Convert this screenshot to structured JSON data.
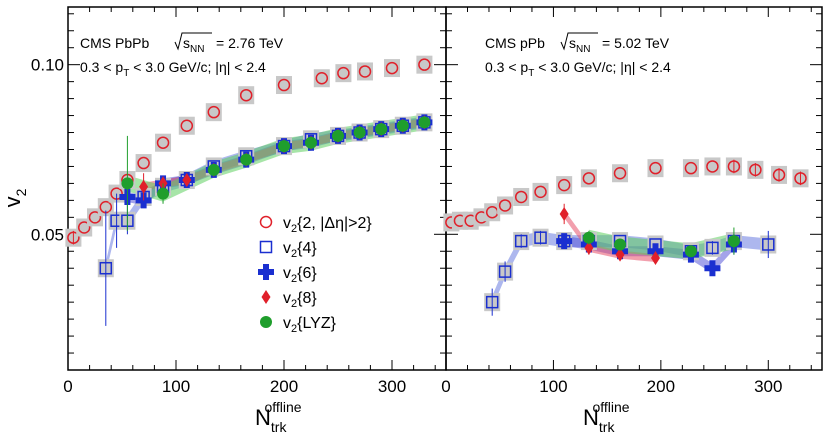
{
  "chart_data": [
    {
      "type": "scatter",
      "panel": "left",
      "title_prefix": "CMS PbPb",
      "energy_main": "s",
      "energy_sub": "NN",
      "energy_value": "= 2.76 TeV",
      "cut_line": "0.3 < p_T < 3.0 GeV/c; |η| < 2.4",
      "cut_parts": {
        "a": "0.3 < p",
        "sub": "T",
        "b": " < 3.0 GeV/c; |η| < 2.4"
      },
      "ylabel": "v2",
      "ylabel_parts": {
        "main": "v",
        "sub": "2"
      },
      "xlabel_parts": {
        "main": "N",
        "sub": "trk",
        "sup": "offline"
      },
      "xlim": [
        0,
        350
      ],
      "ylim": [
        0.01,
        0.117
      ],
      "x_ticks": [
        "0",
        "100",
        "200",
        "300"
      ],
      "x_tick_values": [
        0,
        100,
        200,
        300
      ],
      "y_ticks": [
        "0.05",
        "0.10"
      ],
      "y_tick_values": [
        0.05,
        0.1
      ],
      "series": [
        {
          "name": "v2{2, |Δη|>2}",
          "marker": "open-circle",
          "color": "#e0202a",
          "x": [
            5,
            15,
            25,
            35,
            45,
            55,
            70,
            88,
            110,
            135,
            165,
            200,
            235,
            255,
            275,
            300,
            330
          ],
          "y": [
            0.049,
            0.052,
            0.055,
            0.058,
            0.062,
            0.066,
            0.071,
            0.077,
            0.082,
            0.086,
            0.091,
            0.094,
            0.096,
            0.0975,
            0.098,
            0.099,
            0.1
          ],
          "err": [
            0.002,
            0.001,
            0.001,
            0.001,
            0.001,
            0.001,
            0.001,
            0.001,
            0.001,
            0.001,
            0.001,
            0.001,
            0.001,
            0.001,
            0.001,
            0.001,
            0.001
          ]
        },
        {
          "name": "v2{4}",
          "marker": "open-square",
          "color": "#1a2fd0",
          "x": [
            35,
            45,
            55,
            70,
            88,
            110,
            135,
            165,
            200,
            225,
            250,
            270,
            290,
            310,
            330
          ],
          "y": [
            0.04,
            0.054,
            0.054,
            0.061,
            0.064,
            0.066,
            0.07,
            0.073,
            0.076,
            0.078,
            0.079,
            0.08,
            0.081,
            0.082,
            0.083
          ],
          "err": [
            0.017,
            0.008,
            0.004,
            0.003,
            0.002,
            0.001,
            0.001,
            0.001,
            0.001,
            0.001,
            0.001,
            0.001,
            0.001,
            0.001,
            0.001
          ]
        },
        {
          "name": "v2{6}",
          "marker": "cross",
          "color": "#1a2fd0",
          "x": [
            55,
            70,
            88,
            110,
            135,
            165,
            200,
            225,
            250,
            270,
            290,
            310,
            330
          ],
          "y": [
            0.061,
            0.06,
            0.065,
            0.066,
            0.069,
            0.072,
            0.076,
            0.077,
            0.079,
            0.08,
            0.081,
            0.082,
            0.083
          ],
          "err": [
            0.003,
            0.002,
            0.002,
            0.001,
            0.001,
            0.001,
            0.001,
            0.001,
            0.001,
            0.001,
            0.001,
            0.001,
            0.001
          ]
        },
        {
          "name": "v2{8}",
          "marker": "diamond",
          "color": "#e0202a",
          "x": [
            70,
            88,
            110,
            135,
            165,
            200,
            225,
            250,
            270,
            290,
            310,
            330
          ],
          "y": [
            0.064,
            0.065,
            0.066,
            0.069,
            0.072,
            0.076,
            0.077,
            0.079,
            0.08,
            0.081,
            0.082,
            0.083
          ],
          "err": [
            0.004,
            0.002,
            0.001,
            0.001,
            0.001,
            0.001,
            0.001,
            0.001,
            0.001,
            0.001,
            0.001,
            0.001
          ]
        },
        {
          "name": "v2{LYZ}",
          "marker": "filled-circle",
          "color": "#1f9e2c",
          "x": [
            55,
            88,
            135,
            165,
            200,
            225,
            250,
            270,
            290,
            310,
            330
          ],
          "y": [
            0.065,
            0.062,
            0.069,
            0.072,
            0.076,
            0.077,
            0.079,
            0.08,
            0.081,
            0.082,
            0.083
          ],
          "err": [
            0.014,
            0.003,
            0.001,
            0.001,
            0.001,
            0.001,
            0.001,
            0.001,
            0.001,
            0.001,
            0.001
          ]
        }
      ],
      "legend": {
        "placement": "lower-right",
        "entries": [
          {
            "marker": "open-circle",
            "color": "#e0202a",
            "main": "v",
            "sub": "2",
            "text": "{2, |Δη|>2}"
          },
          {
            "marker": "open-square",
            "color": "#1a2fd0",
            "main": "v",
            "sub": "2",
            "text": "{4}"
          },
          {
            "marker": "cross",
            "color": "#1a2fd0",
            "main": "v",
            "sub": "2",
            "text": "{6}"
          },
          {
            "marker": "diamond",
            "color": "#e0202a",
            "main": "v",
            "sub": "2",
            "text": "{8}"
          },
          {
            "marker": "filled-circle",
            "color": "#1f9e2c",
            "main": "v",
            "sub": "2",
            "text": "{LYZ}"
          }
        ]
      }
    },
    {
      "type": "scatter",
      "panel": "right",
      "title_prefix": "CMS pPb",
      "energy_main": "s",
      "energy_sub": "NN",
      "energy_value": "= 5.02 TeV",
      "cut_line": "0.3 < p_T < 3.0 GeV/c; |η| < 2.4",
      "cut_parts": {
        "a": "0.3 < p",
        "sub": "T",
        "b": " < 3.0 GeV/c; |η| < 2.4"
      },
      "xlabel_parts": {
        "main": "N",
        "sub": "trk",
        "sup": "offline"
      },
      "xlim": [
        0,
        350
      ],
      "ylim": [
        0.01,
        0.117
      ],
      "x_ticks": [
        "0",
        "100",
        "200",
        "300"
      ],
      "x_tick_values": [
        0,
        100,
        200,
        300
      ],
      "series": [
        {
          "name": "v2{2, |Δη|>2}",
          "marker": "open-circle",
          "color": "#e0202a",
          "x": [
            5,
            13,
            23,
            33,
            43,
            55,
            70,
            88,
            110,
            133,
            162,
            195,
            228,
            248,
            268,
            288,
            310,
            330
          ],
          "y": [
            0.0535,
            0.054,
            0.054,
            0.055,
            0.0565,
            0.0585,
            0.061,
            0.0625,
            0.0645,
            0.0665,
            0.068,
            0.0695,
            0.0695,
            0.07,
            0.07,
            0.069,
            0.0675,
            0.0665
          ],
          "err": [
            0.001,
            0.001,
            0.001,
            0.001,
            0.001,
            0.001,
            0.001,
            0.001,
            0.001,
            0.001,
            0.001,
            0.001,
            0.001,
            0.001,
            0.002,
            0.002,
            0.002,
            0.002
          ]
        },
        {
          "name": "v2{4}",
          "marker": "open-square",
          "color": "#1a2fd0",
          "x": [
            43,
            55,
            70,
            88,
            110,
            133,
            162,
            195,
            228,
            248,
            268,
            300
          ],
          "y": [
            0.03,
            0.039,
            0.048,
            0.049,
            0.048,
            0.048,
            0.048,
            0.047,
            0.045,
            0.046,
            0.048,
            0.047
          ],
          "err": [
            0.004,
            0.003,
            0.002,
            0.002,
            0.001,
            0.001,
            0.001,
            0.001,
            0.001,
            0.002,
            0.002,
            0.004
          ]
        },
        {
          "name": "v2{6}",
          "marker": "cross",
          "color": "#1a2fd0",
          "x": [
            110,
            133,
            162,
            195,
            228,
            248,
            268
          ],
          "y": [
            0.048,
            0.047,
            0.045,
            0.045,
            0.044,
            0.04,
            0.047
          ],
          "err": [
            0.002,
            0.001,
            0.001,
            0.001,
            0.001,
            0.002,
            0.003
          ]
        },
        {
          "name": "v2{8}",
          "marker": "diamond",
          "color": "#e0202a",
          "x": [
            110,
            133,
            162,
            195
          ],
          "y": [
            0.056,
            0.046,
            0.044,
            0.043
          ],
          "err": [
            0.003,
            0.002,
            0.001,
            0.001
          ]
        },
        {
          "name": "v2{LYZ}",
          "marker": "filled-circle",
          "color": "#1f9e2c",
          "x": [
            133,
            162,
            228,
            268
          ],
          "y": [
            0.049,
            0.047,
            0.045,
            0.048
          ],
          "err": [
            0.002,
            0.001,
            0.001,
            0.004
          ]
        }
      ]
    }
  ]
}
